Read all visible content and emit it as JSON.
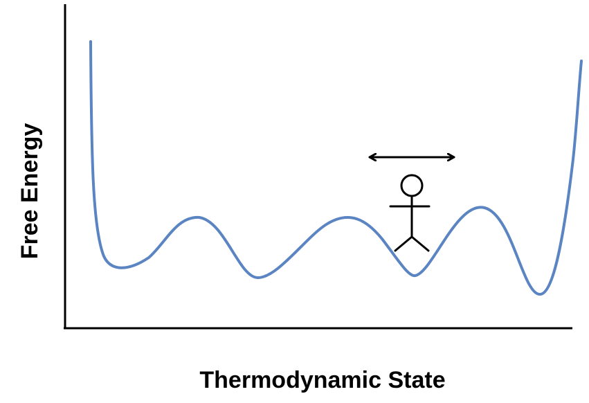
{
  "diagram": {
    "xlabel": "Thermodynamic State",
    "ylabel": "Free Energy",
    "figure": "stick-figure",
    "arrow": "double-headed-horizontal-arrow",
    "colors": {
      "curve": "#5b84c2",
      "axes": "#000000",
      "figure": "#000000"
    }
  }
}
